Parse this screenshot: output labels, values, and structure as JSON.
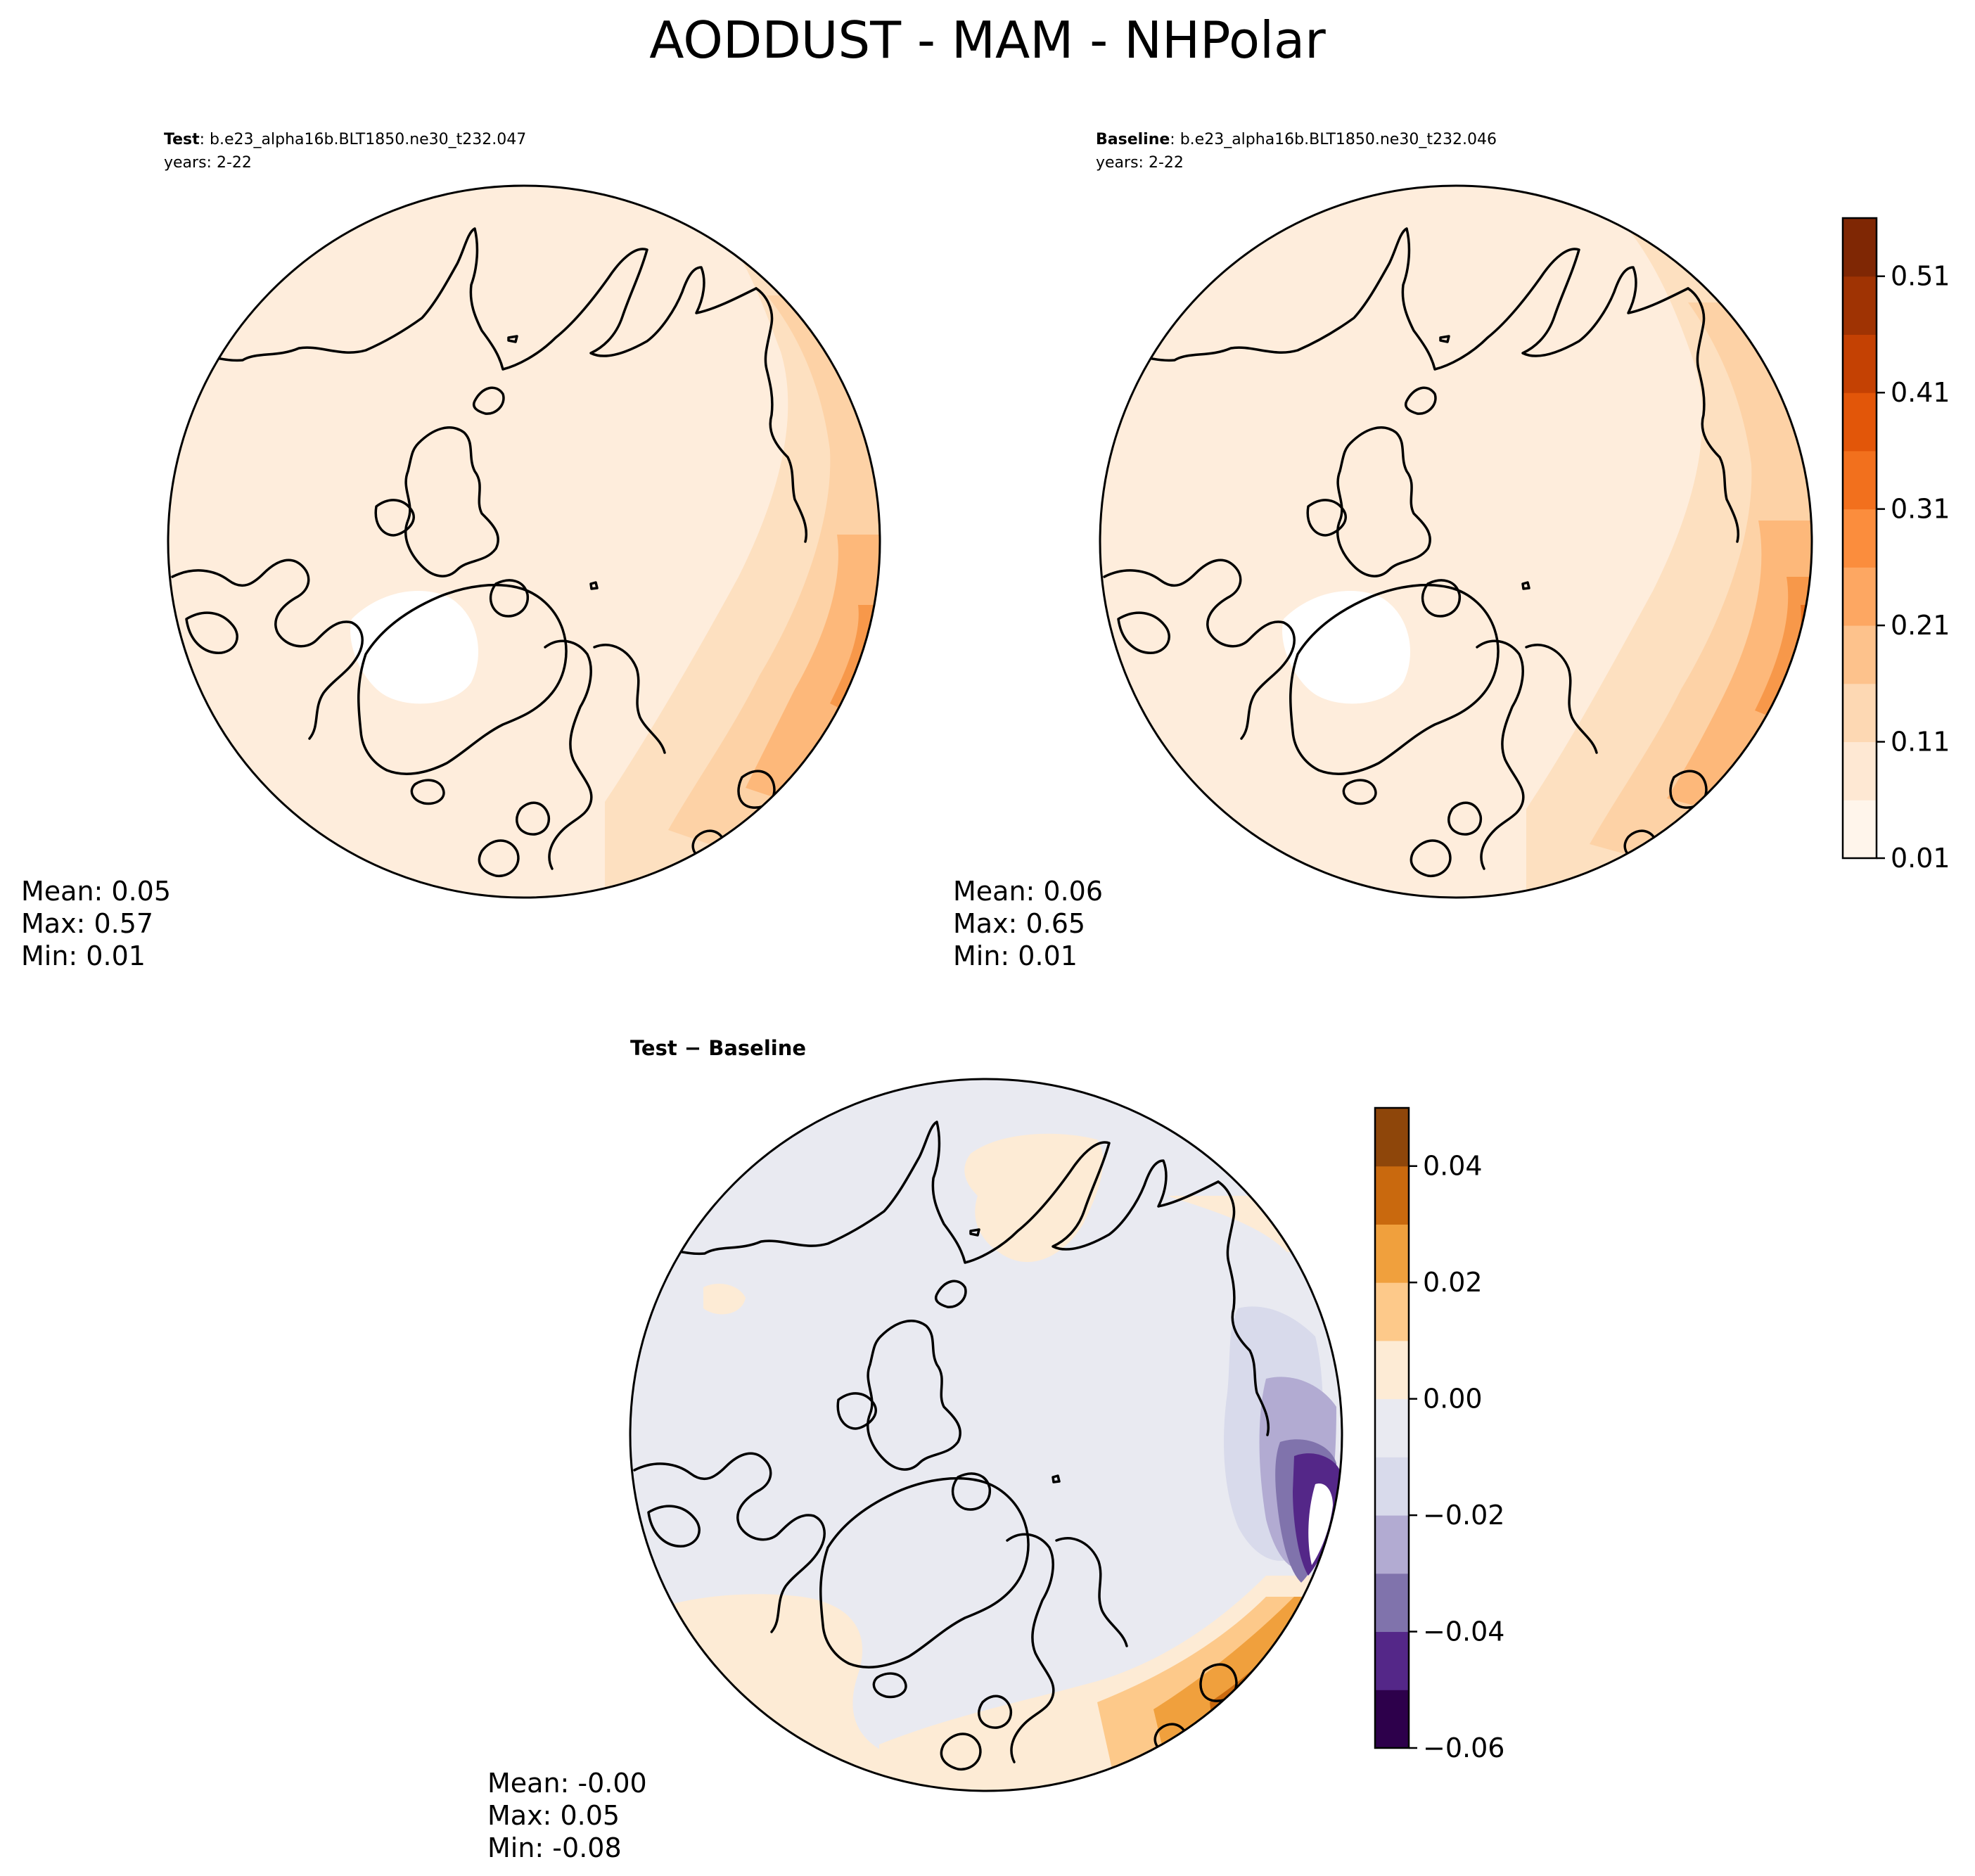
{
  "figure": {
    "title": "AODDUST - MAM - NHPolar"
  },
  "panels": [
    {
      "id": "test",
      "label_bold": "Test",
      "label_text": ": b.e23_alpha16b.BLT1850.ne30_t232.047",
      "years": "years: 2-22",
      "stats": {
        "mean": "Mean:  0.05",
        "max": "Max:  0.57",
        "min": "Min:  0.01"
      }
    },
    {
      "id": "baseline",
      "label_bold": "Baseline",
      "label_text": ": b.e23_alpha16b.BLT1850.ne30_t232.046",
      "years": "years: 2-22",
      "stats": {
        "mean": "Mean:  0.06",
        "max": "Max:  0.65",
        "min": "Min:  0.01"
      }
    },
    {
      "id": "difference",
      "title": "Test − Baseline",
      "stats": {
        "mean": "Mean: -0.00",
        "max": "Max:  0.05",
        "min": "Min: -0.08"
      }
    }
  ],
  "colorbars": {
    "main": {
      "colors": [
        "#fff5eb",
        "#fee8d3",
        "#fdd8b3",
        "#fdc28c",
        "#fda762",
        "#fb8d3d",
        "#f2701d",
        "#e25609",
        "#c44103",
        "#9f3303",
        "#7f2704"
      ],
      "ticks": [
        "0.01",
        "0.11",
        "0.21",
        "0.31",
        "0.41",
        "0.51"
      ]
    },
    "diff": {
      "colors": [
        "#2d004b",
        "#542788",
        "#8073ac",
        "#b2abd2",
        "#d8daeb",
        "#e9eaf1",
        "#fdebd5",
        "#fdc98a",
        "#f0a03d",
        "#c9690e",
        "#8e460a"
      ],
      "ticks": [
        "−0.06",
        "−0.04",
        "−0.02",
        "0.00",
        "0.02",
        "0.04"
      ]
    }
  }
}
